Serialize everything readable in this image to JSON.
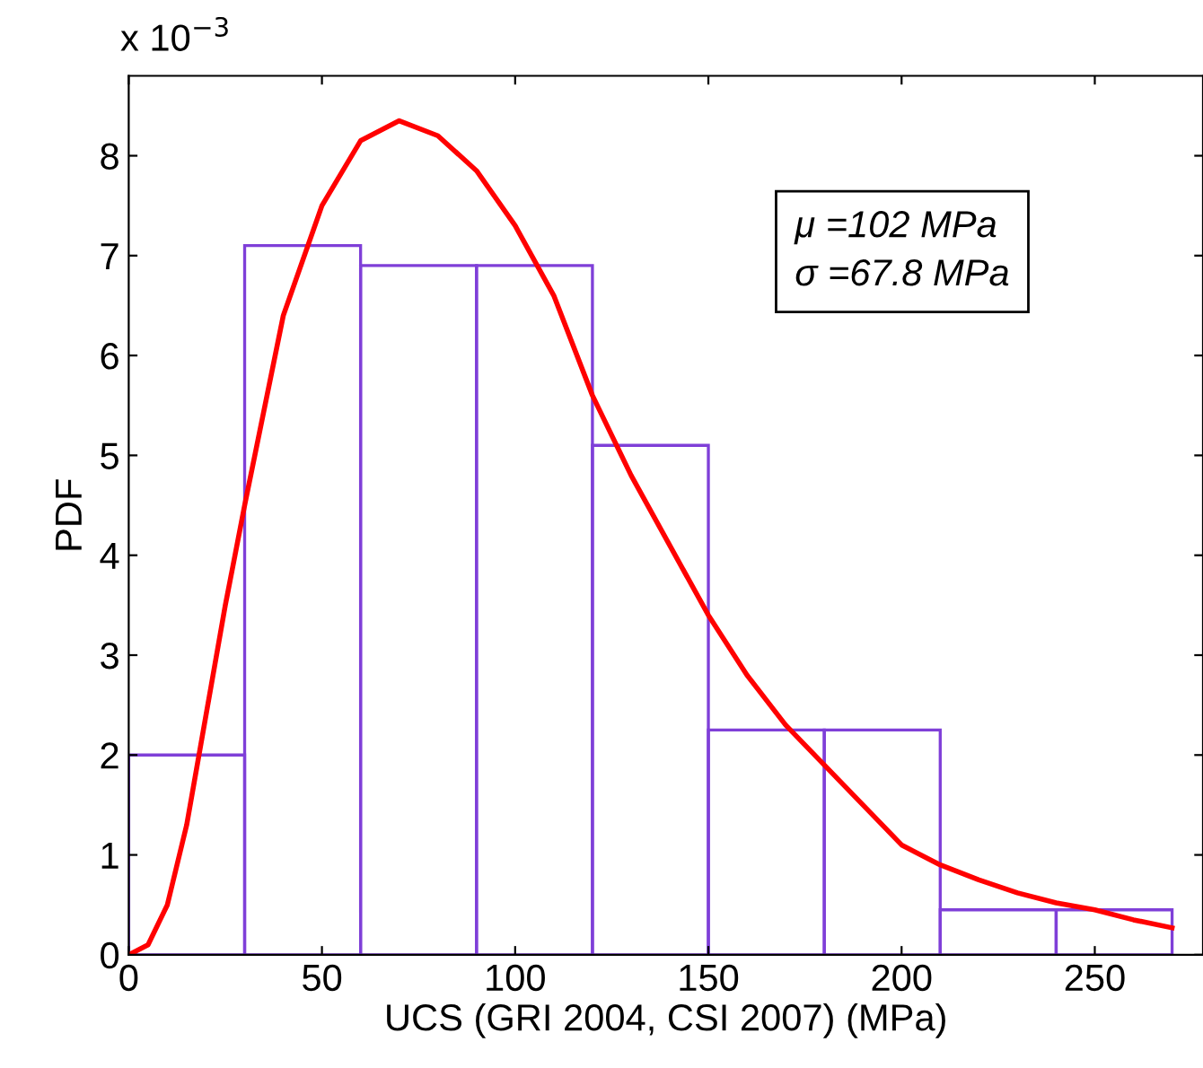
{
  "chart_data": {
    "type": "histogram",
    "xlabel": "UCS (GRI 2004, CSI 2007) (MPa)",
    "ylabel": "PDF",
    "bins": [
      0,
      30,
      60,
      90,
      120,
      150,
      180,
      210,
      240,
      270
    ],
    "values": [
      2.0,
      7.1,
      6.9,
      6.9,
      5.1,
      2.25,
      2.25,
      0.45,
      0.45
    ],
    "color": "#7f3fd8",
    "series": [
      {
        "type": "line",
        "color": "#ff0000",
        "x": [
          0,
          5,
          10,
          15,
          20,
          25,
          30,
          40,
          50,
          60,
          70,
          80,
          90,
          100,
          110,
          120,
          130,
          140,
          150,
          160,
          170,
          180,
          190,
          200,
          210,
          220,
          230,
          240,
          250,
          260,
          270
        ],
        "values": [
          0,
          0.1,
          0.5,
          1.3,
          2.4,
          3.5,
          4.5,
          6.4,
          7.5,
          8.15,
          8.35,
          8.2,
          7.85,
          7.3,
          6.6,
          5.6,
          4.8,
          4.1,
          3.4,
          2.8,
          2.3,
          1.9,
          1.5,
          1.1,
          0.9,
          0.75,
          0.62,
          0.52,
          0.45,
          0.35,
          0.27
        ]
      }
    ],
    "xlim": [
      0,
      278
    ],
    "ylim": [
      0,
      8.8
    ],
    "xticks": [
      0,
      50,
      100,
      150,
      200,
      250
    ],
    "yticks": [
      0,
      1,
      2,
      3,
      4,
      5,
      6,
      7,
      8
    ],
    "annotations": [
      "x 10$^{−3}$",
      "μ =102 MPa\nσ =67.8 MPa"
    ],
    "grid": false,
    "legend": false
  }
}
